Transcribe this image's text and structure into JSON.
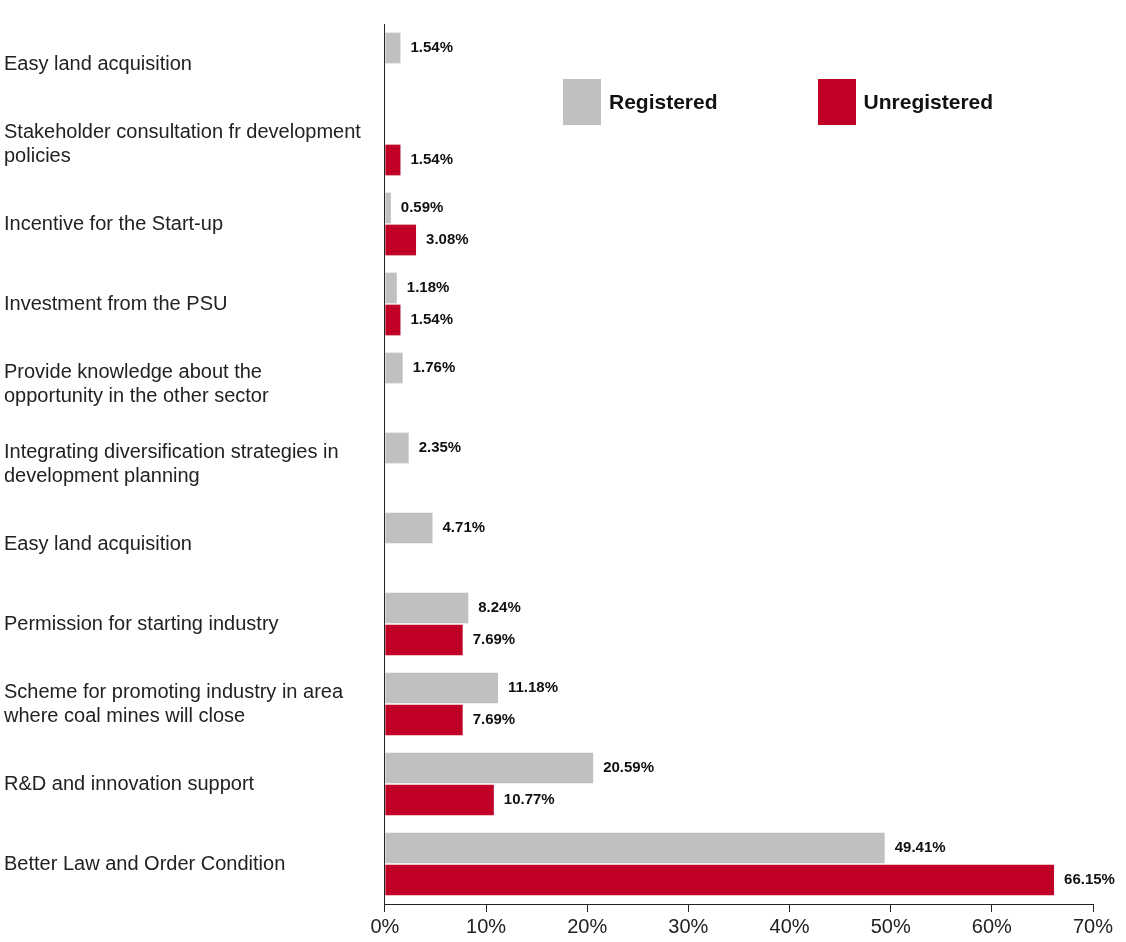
{
  "chart_data": {
    "type": "bar",
    "orientation": "horizontal",
    "categories": [
      "Easy land acquisition",
      "Stakeholder consultation fr development policies",
      "Incentive for the Start-up",
      "Investment from the PSU",
      "Provide knowledge about the opportunity in the other sector",
      "Integrating diversification strategies in development planning",
      "Easy land acquisition",
      "Permission for starting industry",
      "Scheme for promoting industry in area where coal mines will close",
      "R&D and innovation support",
      "Better Law and Order Condition"
    ],
    "series": [
      {
        "name": "Registered",
        "color": "#c0c0c0",
        "values": [
          1.54,
          null,
          0.59,
          1.18,
          1.76,
          2.35,
          4.71,
          8.24,
          11.18,
          20.59,
          49.41
        ],
        "value_labels": [
          "1.54%",
          null,
          "0.59%",
          "1.18%",
          "1.76%",
          "2.35%",
          "4.71%",
          "8.24%",
          "11.18%",
          "20.59%",
          "49.41%"
        ]
      },
      {
        "name": "Unregistered",
        "color": "#c00026",
        "values": [
          null,
          1.54,
          3.08,
          1.54,
          null,
          null,
          null,
          7.69,
          7.69,
          10.77,
          66.15
        ],
        "value_labels": [
          null,
          "1.54%",
          "3.08%",
          "1.54%",
          null,
          null,
          null,
          "7.69%",
          "7.69%",
          "10.77%",
          "66.15%"
        ]
      }
    ],
    "xlim": [
      0,
      70
    ],
    "xticks": [
      {
        "value": 0,
        "label": "0%"
      },
      {
        "value": 10,
        "label": "10%"
      },
      {
        "value": 20,
        "label": "20%"
      },
      {
        "value": 30,
        "label": "30%"
      },
      {
        "value": 40,
        "label": "40%"
      },
      {
        "value": 50,
        "label": "50%"
      },
      {
        "value": 60,
        "label": "60%"
      },
      {
        "value": 70,
        "label": "70%"
      }
    ],
    "grid": false,
    "legend": "top right"
  }
}
